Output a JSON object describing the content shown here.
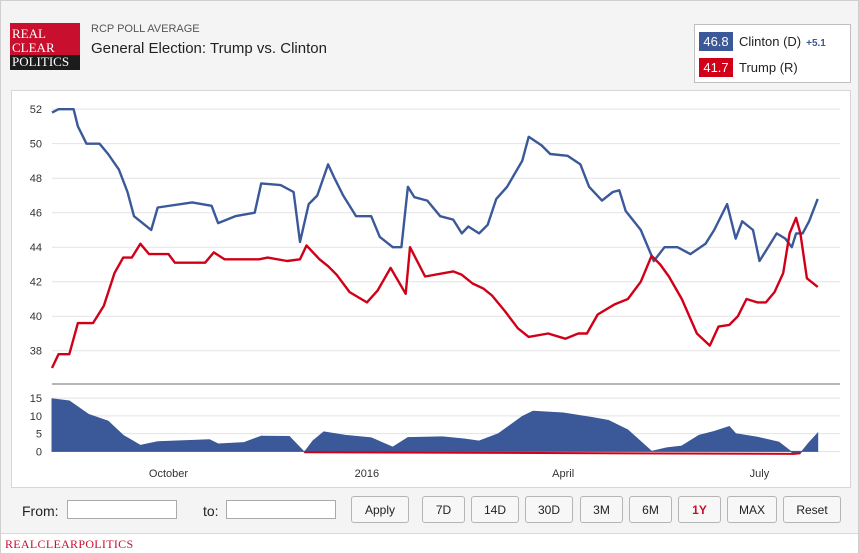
{
  "header": {
    "logo_lines": [
      "REAL",
      "CLEAR",
      "POLITICS"
    ],
    "subtitle": "RCP POLL AVERAGE",
    "title": "General Election: Trump vs. Clinton"
  },
  "legend": [
    {
      "value": "46.8",
      "name": "Clinton (D)",
      "spread": "+5.1",
      "color": "#3b5998"
    },
    {
      "value": "41.7",
      "name": "Trump (R)",
      "spread": "",
      "color": "#d10019"
    }
  ],
  "controls": {
    "from_label": "From:",
    "to_label": "to:",
    "from_value": "",
    "to_value": "",
    "apply_label": "Apply",
    "ranges": [
      "7D",
      "14D",
      "30D",
      "3M",
      "6M",
      "1Y",
      "MAX"
    ],
    "active_range": "1Y",
    "reset_label": "Reset"
  },
  "footer": {
    "text": "REALCLEARPOLITICS"
  },
  "chart_data": {
    "type": "line",
    "title": "General Election: Trump vs. Clinton",
    "x_range": [
      "2015-08-08",
      "2016-07-30"
    ],
    "x_tick_labels": [
      {
        "label": "October",
        "date": "2015-10-01"
      },
      {
        "label": "2016",
        "date": "2016-01-01"
      },
      {
        "label": "April",
        "date": "2016-04-01"
      },
      {
        "label": "July",
        "date": "2016-07-01"
      }
    ],
    "ylim": [
      37,
      52.3
    ],
    "yticks": [
      38,
      40,
      42,
      44,
      46,
      48,
      50,
      52
    ],
    "grid": true,
    "series": [
      {
        "name": "Clinton (D)",
        "color": "#3b5998",
        "points": [
          [
            "2015-08-08",
            51.8
          ],
          [
            "2015-08-11",
            52
          ],
          [
            "2015-08-18",
            52
          ],
          [
            "2015-08-20",
            51
          ],
          [
            "2015-08-24",
            50
          ],
          [
            "2015-08-30",
            50
          ],
          [
            "2015-09-03",
            49.4
          ],
          [
            "2015-09-08",
            48.5
          ],
          [
            "2015-09-12",
            47.2
          ],
          [
            "2015-09-15",
            45.8
          ],
          [
            "2015-09-20",
            45.3
          ],
          [
            "2015-09-23",
            45
          ],
          [
            "2015-09-26",
            46.3
          ],
          [
            "2015-10-12",
            46.6
          ],
          [
            "2015-10-21",
            46.4
          ],
          [
            "2015-10-24",
            45.4
          ],
          [
            "2015-11-01",
            45.8
          ],
          [
            "2015-11-10",
            46
          ],
          [
            "2015-11-13",
            47.7
          ],
          [
            "2015-11-22",
            47.6
          ],
          [
            "2015-11-28",
            47.2
          ],
          [
            "2015-12-01",
            44.3
          ],
          [
            "2015-12-05",
            46.5
          ],
          [
            "2015-12-09",
            47
          ],
          [
            "2015-12-14",
            48.8
          ],
          [
            "2015-12-17",
            48
          ],
          [
            "2015-12-21",
            47
          ],
          [
            "2015-12-27",
            45.8
          ],
          [
            "2016-01-03",
            45.8
          ],
          [
            "2016-01-07",
            44.6
          ],
          [
            "2016-01-13",
            44
          ],
          [
            "2016-01-17",
            44
          ],
          [
            "2016-01-20",
            47.5
          ],
          [
            "2016-01-23",
            46.9
          ],
          [
            "2016-01-29",
            46.7
          ],
          [
            "2016-02-04",
            45.8
          ],
          [
            "2016-02-10",
            45.6
          ],
          [
            "2016-02-14",
            44.8
          ],
          [
            "2016-02-17",
            45.2
          ],
          [
            "2016-02-22",
            44.8
          ],
          [
            "2016-02-26",
            45.3
          ],
          [
            "2016-03-01",
            46.8
          ],
          [
            "2016-03-06",
            47.5
          ],
          [
            "2016-03-13",
            49
          ],
          [
            "2016-03-16",
            50.4
          ],
          [
            "2016-03-22",
            49.9
          ],
          [
            "2016-03-26",
            49.4
          ],
          [
            "2016-04-03",
            49.3
          ],
          [
            "2016-04-09",
            48.8
          ],
          [
            "2016-04-13",
            47.5
          ],
          [
            "2016-04-19",
            46.7
          ],
          [
            "2016-04-24",
            47.2
          ],
          [
            "2016-04-27",
            47.3
          ],
          [
            "2016-04-30",
            46.1
          ],
          [
            "2016-05-07",
            45
          ],
          [
            "2016-05-13",
            43.2
          ],
          [
            "2016-05-18",
            44
          ],
          [
            "2016-05-24",
            44
          ],
          [
            "2016-05-30",
            43.6
          ],
          [
            "2016-06-06",
            44.2
          ],
          [
            "2016-06-10",
            45
          ],
          [
            "2016-06-16",
            46.5
          ],
          [
            "2016-06-20",
            44.5
          ],
          [
            "2016-06-23",
            45.5
          ],
          [
            "2016-06-28",
            45
          ],
          [
            "2016-07-01",
            43.2
          ],
          [
            "2016-07-05",
            44
          ],
          [
            "2016-07-09",
            44.8
          ],
          [
            "2016-07-13",
            44.5
          ],
          [
            "2016-07-16",
            44
          ],
          [
            "2016-07-18",
            44.8
          ],
          [
            "2016-07-21",
            44.8
          ],
          [
            "2016-07-24",
            45.5
          ],
          [
            "2016-07-28",
            46.8
          ]
        ]
      },
      {
        "name": "Trump (R)",
        "color": "#d10019",
        "points": [
          [
            "2015-08-08",
            37
          ],
          [
            "2015-08-11",
            37.8
          ],
          [
            "2015-08-16",
            37.8
          ],
          [
            "2015-08-20",
            39.6
          ],
          [
            "2015-08-27",
            39.6
          ],
          [
            "2015-09-01",
            40.6
          ],
          [
            "2015-09-06",
            42.5
          ],
          [
            "2015-09-10",
            43.4
          ],
          [
            "2015-09-14",
            43.4
          ],
          [
            "2015-09-18",
            44.2
          ],
          [
            "2015-09-22",
            43.6
          ],
          [
            "2015-10-01",
            43.6
          ],
          [
            "2015-10-04",
            43.1
          ],
          [
            "2015-10-18",
            43.1
          ],
          [
            "2015-10-22",
            43.7
          ],
          [
            "2015-10-27",
            43.3
          ],
          [
            "2015-11-12",
            43.3
          ],
          [
            "2015-11-16",
            43.4
          ],
          [
            "2015-11-25",
            43.2
          ],
          [
            "2015-12-01",
            43.3
          ],
          [
            "2015-12-04",
            44.1
          ],
          [
            "2015-12-10",
            43.3
          ],
          [
            "2015-12-14",
            42.9
          ],
          [
            "2015-12-18",
            42.4
          ],
          [
            "2015-12-24",
            41.4
          ],
          [
            "2016-01-01",
            40.8
          ],
          [
            "2016-01-06",
            41.5
          ],
          [
            "2016-01-12",
            42.8
          ],
          [
            "2016-01-19",
            41.3
          ],
          [
            "2016-01-21",
            44
          ],
          [
            "2016-01-28",
            42.3
          ],
          [
            "2016-02-10",
            42.6
          ],
          [
            "2016-02-14",
            42.4
          ],
          [
            "2016-02-19",
            41.9
          ],
          [
            "2016-02-24",
            41.6
          ],
          [
            "2016-02-28",
            41.2
          ],
          [
            "2016-03-05",
            40.3
          ],
          [
            "2016-03-11",
            39.3
          ],
          [
            "2016-03-16",
            38.8
          ],
          [
            "2016-03-25",
            39
          ],
          [
            "2016-04-02",
            38.7
          ],
          [
            "2016-04-08",
            39
          ],
          [
            "2016-04-12",
            39
          ],
          [
            "2016-04-17",
            40.1
          ],
          [
            "2016-04-25",
            40.7
          ],
          [
            "2016-05-01",
            41
          ],
          [
            "2016-05-07",
            42
          ],
          [
            "2016-05-12",
            43.5
          ],
          [
            "2016-05-16",
            43
          ],
          [
            "2016-05-20",
            42.3
          ],
          [
            "2016-05-26",
            41
          ],
          [
            "2016-06-02",
            39
          ],
          [
            "2016-06-08",
            38.3
          ],
          [
            "2016-06-12",
            39.4
          ],
          [
            "2016-06-17",
            39.5
          ],
          [
            "2016-06-21",
            40
          ],
          [
            "2016-06-25",
            41
          ],
          [
            "2016-06-30",
            40.8
          ],
          [
            "2016-07-04",
            40.8
          ],
          [
            "2016-07-08",
            41.4
          ],
          [
            "2016-07-12",
            42.5
          ],
          [
            "2016-07-15",
            44.8
          ],
          [
            "2016-07-18",
            45.7
          ],
          [
            "2016-07-20",
            44.8
          ],
          [
            "2016-07-23",
            42.2
          ],
          [
            "2016-07-28",
            41.7
          ]
        ]
      },
      {
        "name": "Spread",
        "color": "#3b5998",
        "points": [
          [
            "2015-08-08",
            14.8
          ],
          [
            "2015-08-16",
            14.2
          ],
          [
            "2015-08-25",
            10.4
          ],
          [
            "2015-09-03",
            8.5
          ],
          [
            "2015-09-10",
            4.5
          ],
          [
            "2015-09-18",
            1.7
          ],
          [
            "2015-09-26",
            2.7
          ],
          [
            "2015-10-20",
            3.3
          ],
          [
            "2015-10-24",
            2.1
          ],
          [
            "2015-11-05",
            2.5
          ],
          [
            "2015-11-13",
            4.3
          ],
          [
            "2015-11-26",
            4.2
          ],
          [
            "2015-12-03",
            -0.2
          ],
          [
            "2015-12-07",
            3
          ],
          [
            "2015-12-12",
            5.5
          ],
          [
            "2015-12-22",
            4.5
          ],
          [
            "2016-01-03",
            3.8
          ],
          [
            "2016-01-13",
            1.2
          ],
          [
            "2016-01-20",
            3.9
          ],
          [
            "2016-02-05",
            4.1
          ],
          [
            "2016-02-15",
            3.5
          ],
          [
            "2016-02-22",
            2.9
          ],
          [
            "2016-03-02",
            5
          ],
          [
            "2016-03-13",
            9.8
          ],
          [
            "2016-03-18",
            11.3
          ],
          [
            "2016-04-01",
            10.8
          ],
          [
            "2016-04-15",
            9.5
          ],
          [
            "2016-04-22",
            8.7
          ],
          [
            "2016-05-01",
            6
          ],
          [
            "2016-05-12",
            0
          ],
          [
            "2016-05-19",
            1
          ],
          [
            "2016-05-26",
            1.5
          ],
          [
            "2016-06-03",
            4.5
          ],
          [
            "2016-06-10",
            5.6
          ],
          [
            "2016-06-17",
            7
          ],
          [
            "2016-06-20",
            5
          ],
          [
            "2016-06-30",
            4
          ],
          [
            "2016-07-10",
            2.6
          ],
          [
            "2016-07-17",
            -0.7
          ],
          [
            "2016-07-20",
            -0.5
          ],
          [
            "2016-07-24",
            2.5
          ],
          [
            "2016-07-28",
            5.1
          ]
        ]
      }
    ],
    "spread_ylim": [
      -1,
      17
    ],
    "spread_yticks": [
      0,
      5,
      10,
      15
    ]
  }
}
